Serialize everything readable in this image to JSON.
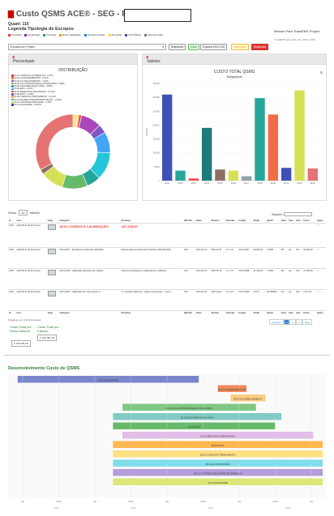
{
  "header": {
    "title": "Custo QSMS ACE® - SEG - Projeto-",
    "icon": "chart-icon",
    "quant": "Quant: 110",
    "legenda": "Legenda Tipologia de Escopos",
    "metodo": "Metodo Para TransEMS Project",
    "metodo_sub": "TransEMS para dias, ano, 2022, 1999",
    "legend_items": [
      {
        "label": "Previstas",
        "color": "#e53935"
      },
      {
        "label": "Qualificado",
        "color": "#8e24aa"
      },
      {
        "label": "Previsão",
        "color": "#43a047"
      },
      {
        "label": "Nova Viabilidade",
        "color": "#fb8c00"
      },
      {
        "label": "Tentativa Ambas",
        "color": "#1e88e5"
      },
      {
        "label": "Aprovado",
        "color": "#fdd835"
      },
      {
        "label": "Ativo/Planej",
        "color": "#3949ab"
      },
      {
        "label": "Não Aprovado",
        "color": "#757575"
      }
    ]
  },
  "toolbar": {
    "select_value": "Escolha um Projeto",
    "buttons": [
      {
        "label": "Selecionar",
        "bg": "#f5f5f5",
        "color": "#333",
        "border": "#999"
      },
      {
        "label": "Histór",
        "bg": "#e8f5e9",
        "color": "#2e7d32",
        "border": "#66bb6a"
      },
      {
        "label": "Exportar EXC-CVS",
        "bg": "#f5f5f5",
        "color": "#333",
        "border": "#999"
      },
      {
        "label": "Importação",
        "bg": "#fff8e1",
        "color": "#f9a825",
        "border": "#fbc02d"
      },
      {
        "label": "Recalcular",
        "bg": "#e53935",
        "color": "#fff",
        "border": "#c62828"
      }
    ]
  },
  "panels": {
    "left_title": "Percentuais",
    "right_title": "Valores"
  },
  "donut": {
    "title": "DISTRIBUIÇÃO",
    "legend": [
      {
        "label": "06.01-CURSOS E CALIBRAÇÃO - 2,12%",
        "color": "#e53935"
      },
      {
        "label": "06.02-CS-EQUIPAMENTOS - 0,51%",
        "color": "#ff7043"
      },
      {
        "label": "06.03-CS-ARQUIVAMENTO - 1,23%",
        "color": "#ab47bc"
      },
      {
        "label": "06.04-CS-CONTRATAÇÕES E FUNDAÇÕES - 8,88%",
        "color": "#66bb6a"
      },
      {
        "label": "06.05-DOCUMENTAÇÃO (SMS) - 3,80%",
        "color": "#26a69a"
      },
      {
        "label": "06.06-EPIS - 9,21%",
        "color": "#42a5f5"
      },
      {
        "label": "06.07-MEDICINA E SEGURANÇA - 12,12%",
        "color": "#ef5350"
      },
      {
        "label": "06.08-EPCS - 6,09%",
        "color": "#7e57c2"
      },
      {
        "label": "06.09-CURSOS E TREINAMENTO - 11,14%",
        "color": "#ffa726"
      },
      {
        "label": "06.10-EXAMES ADMISSÃO/PROTEÇÃO - 10,02%",
        "color": "#26c6da"
      },
      {
        "label": "06.11-CONTROLE DESCARTE - 2,22%",
        "color": "#d4e157"
      },
      {
        "label": "06.12-QUALIDADE - 33,41%",
        "color": "#3f51b5"
      }
    ],
    "values": [
      2.12,
      0.51,
      1.23,
      8.88,
      3.8,
      9.21,
      12.12,
      6.09,
      11.14,
      10.02,
      2.22,
      33.41
    ],
    "colors": [
      "#f0e68c",
      "#ffa726",
      "#ef5350",
      "#ab47bc",
      "#7e57c2",
      "#42a5f5",
      "#26c6da",
      "#26a69a",
      "#66bb6a",
      "#d4e157",
      "#8d6e63",
      "#e57373"
    ]
  },
  "chart_data": {
    "type": "bar",
    "title": "CUSTO TOTAL QSMS",
    "subtitle": "Subgrupos",
    "xlabel": "",
    "ylabel": "VALOR",
    "categories": [
      "06.01",
      "06.02",
      "06.03",
      "06.04",
      "06.05",
      "06.06",
      "06.07",
      "06.08",
      "06.09",
      "06.10",
      "06.11",
      "06.12"
    ],
    "values": [
      310000,
      36000,
      8000,
      190000,
      40000,
      36000,
      16000,
      297000,
      238000,
      46000,
      325000,
      44000
    ],
    "colors": [
      "#3f51b5",
      "#26a69a",
      "#ef5350",
      "#1f7a7a",
      "#8d6e63",
      "#d4e157",
      "#90a4ae",
      "#26a69a",
      "#ef6c47",
      "#3f51b5",
      "#d4e157",
      "#e57373"
    ],
    "ylim": [
      0,
      350000
    ],
    "yticks": [
      "350000",
      "300000",
      "250000",
      "200000",
      "150000",
      "100000",
      "50000",
      "0"
    ]
  },
  "table": {
    "show_label": "Show",
    "entries_value": "10",
    "entries_label": "entries",
    "search_label": "Search:",
    "columns": [
      "Id",
      "Cod",
      "Imag",
      "Categoria",
      "Previstas",
      "SAP Nro",
      "Inicio",
      "Termino",
      "Intervalo",
      "Codigo",
      "PreInt",
      "Quant",
      "Unid",
      "Tipo",
      "Aviv",
      "Custo",
      "Ações"
    ],
    "rows": [
      {
        "id": "1001",
        "cod": "QMS 00.01 00:00 Cursos",
        "cat": "06.01-CURSOS E CALIBRAÇÃO",
        "prev": "237,228,00",
        "sap": "",
        "inicio": "",
        "termino": "",
        "interv": "",
        "codigo": "",
        "preint": "",
        "quant": "",
        "unid": "",
        "tipo": "",
        "aviv": "",
        "custo": ""
      },
      {
        "id": "1002",
        "cod": "QMS 00.01 00:00 Cursos",
        "cat": "06.01.0007 - Emissão de certificado calibração",
        "prev": "Manutenção preventiva de Trocadores SPE 04/30/30",
        "sap": "4.50",
        "inicio": "2021.01.01",
        "termino": "2031.11.30",
        "interv": "1.0 / 1.0",
        "codigo": "06.01.0007",
        "preint": "90.000,00",
        "quant": "2.0000",
        "unid": "VB",
        "tipo": "per",
        "aviv": "Sim",
        "custo": "90.000,00"
      },
      {
        "id": "1003",
        "cod": "QMS 00.01 00:00 Cursos",
        "cat": "06.01.0008 - Calibração aparelhos de medição",
        "prev": "Abertura de bloqueio e Calibração de medidores",
        "sap": "4.50",
        "inicio": "2021.01.01",
        "termino": "2031.09.15",
        "interv": "1.0 / 1.0",
        "codigo": "06.01.0008",
        "preint": "21.000,00",
        "quant": "1.0000",
        "unid": "VB",
        "tipo": "per",
        "aviv": "Sim",
        "custo": "21.000,00"
      },
      {
        "id": "1004",
        "cod": "QMS 00.01 00:00 Cursos",
        "cat": "06.01.0009 - Calibração de Instrumentos IV",
        "prev": "Ti, contador calibrados - Ações intervenções - 4 anos",
        "sap": "1.60",
        "inicio": "2021.01.01",
        "termino": "2031.04.20",
        "interv": "1.0 / 1.0",
        "codigo": "06.01.0009",
        "preint": "76,03",
        "quant": "84.000000",
        "unid": "UN",
        "tipo": "per",
        "aviv": "Sim",
        "custo": "6.077,00"
      }
    ],
    "showing": "Showing 1 to 10 of 110 entries",
    "pagination": [
      "Previous",
      "1",
      "2",
      "3",
      "Next"
    ],
    "total_label_1": "Custo Total por Soma Valores",
    "total_value_1": "1.109.782,28",
    "total_label_2": "Custo Total por Calculo",
    "total_value_2": "1.109.782,28"
  },
  "gantt": {
    "title": "Desenvolvimento Custo de QSMS",
    "x_ticks": [
      "Jul",
      "2020",
      "Jul",
      "2021",
      "Jul",
      "2022",
      "Jul",
      "2023",
      "Jul"
    ],
    "x_years": [
      "2020",
      "2021",
      "2022",
      "2023"
    ],
    "tasks": [
      {
        "label": "06.12-QUALIDADE",
        "start": 0.03,
        "end": 0.6,
        "color": "#7986cb"
      },
      {
        "label": "06.01-CS-EQUIPAMENTOS",
        "start": 0.66,
        "end": 0.75,
        "color": "#ef8a5a"
      },
      {
        "label": "06.03-CS-ARQUIVAMENTO",
        "start": 0.7,
        "end": 0.81,
        "color": "#ffcc80"
      },
      {
        "label": "06.04-CS-CONTRATAÇÕES E FUNDAÇÕES",
        "start": 0.36,
        "end": 0.78,
        "color": "#81c784"
      },
      {
        "label": "06.05-DOCUMENTAÇÃO (SMS)",
        "start": 0.33,
        "end": 0.86,
        "color": "#80cbc4"
      },
      {
        "label": "06.06-EPIS",
        "start": 0.33,
        "end": 0.84,
        "color": "#66bb6a"
      },
      {
        "label": "06.07-MEDICINA E SEGURANÇA",
        "start": 0.36,
        "end": 0.96,
        "color": "#e1bee7"
      },
      {
        "label": "06.08-EPCS",
        "start": 0.33,
        "end": 0.99,
        "color": "#ffb74d"
      },
      {
        "label": "06.09-CURSOS E TREINAMENTO",
        "start": 0.33,
        "end": 0.99,
        "color": "#ffe082"
      },
      {
        "label": "06.10-EXCS ADMISSÃO",
        "start": 0.33,
        "end": 0.99,
        "color": "#80deea"
      },
      {
        "label": "06.11-CONTROLE DESCARTE DE RESÍDUOS",
        "start": 0.33,
        "end": 0.99,
        "color": "#b39ddb"
      },
      {
        "label": "06.12-QUALIDADE",
        "start": 0.33,
        "end": 0.99,
        "color": "#dce775"
      }
    ]
  }
}
